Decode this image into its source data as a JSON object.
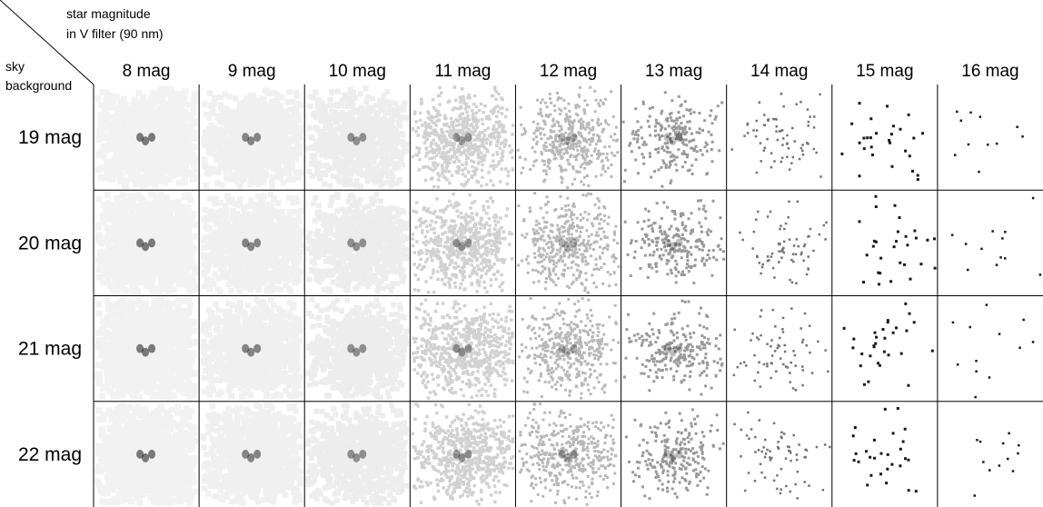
{
  "corner": {
    "column_axis": [
      "star magnitude",
      "in V filter (90 nm)"
    ],
    "row_axis": [
      "sky",
      "background"
    ]
  },
  "columns": [
    "8 mag",
    "9 mag",
    "10 mag",
    "11 mag",
    "12 mag",
    "13 mag",
    "14 mag",
    "15 mag",
    "16 mag"
  ],
  "rows": [
    "19 mag",
    "20 mag",
    "21 mag",
    "22 mag"
  ]
}
